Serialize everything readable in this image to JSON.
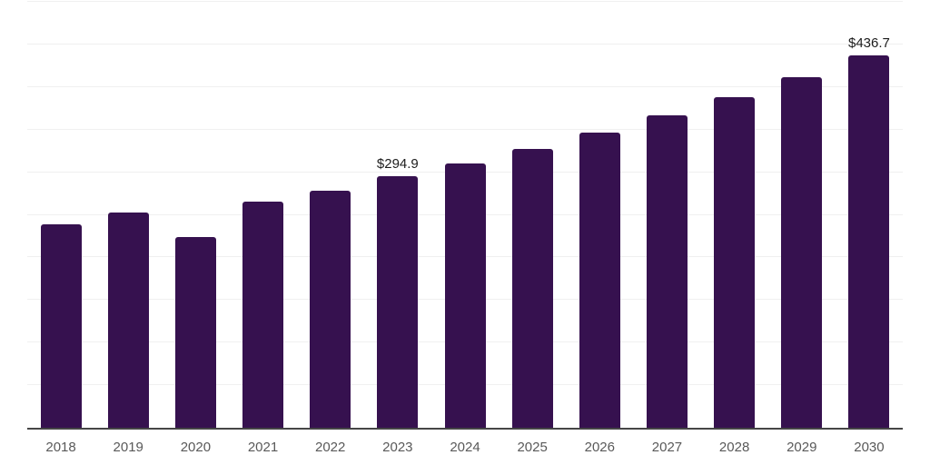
{
  "chart_data": {
    "type": "bar",
    "title": "",
    "xlabel": "",
    "ylabel": "",
    "categories": [
      "2018",
      "2019",
      "2020",
      "2021",
      "2022",
      "2023",
      "2024",
      "2025",
      "2026",
      "2027",
      "2028",
      "2029",
      "2030"
    ],
    "values": [
      238.5,
      252.3,
      224.4,
      265.0,
      278.5,
      294.9,
      309.8,
      326.8,
      346.3,
      366.5,
      387.6,
      411.5,
      436.7
    ],
    "data_labels": [
      "",
      "",
      "",
      "",
      "",
      "$294.9",
      "",
      "",
      "",
      "",
      "",
      "",
      "$436.7"
    ],
    "ylim": [
      0,
      500
    ],
    "gridline_step": 50,
    "grid": true,
    "legend": false,
    "colors": {
      "bar": "#36114F",
      "gridline": "#f0f0f0",
      "axis_line": "#464646",
      "tick_label": "#595959",
      "data_label": "#1c1c1c",
      "background": "#ffffff"
    }
  }
}
